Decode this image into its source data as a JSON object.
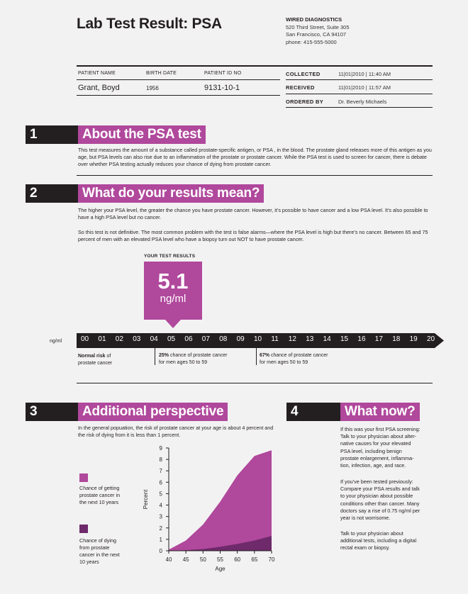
{
  "header": {
    "title": "Lab Test Result: PSA",
    "lab": {
      "name": "WIRED DIAGNOSTICS",
      "address1": "520 Third Street, Suite 305",
      "address2": "San Francisco, CA 94107",
      "phone": "phone: 415-555-5000"
    }
  },
  "patient": {
    "name_label": "PATIENT NAME",
    "name": "Grant, Boyd",
    "birth_label": "BIRTH DATE",
    "birth": "1956",
    "id_label": "PATIENT ID NO",
    "id": "9131-10-1",
    "collected_label": "COLLECTED",
    "collected": "11|01|2010 | 11:40 AM",
    "received_label": "RECEIVED",
    "received": "11|01|2010 | 11:57 AM",
    "ordered_label": "ORDERED BY",
    "ordered": "Dr. Beverly Michaels"
  },
  "section1": {
    "number": "1",
    "title": "About the PSA test",
    "text": "This test measures the amount of a substance called prostate-specific antigen, or PSA , in the blood. The prostate gland releases more of this antigen as you age, but PSA levels can also rise due to an inflammation of the prostate or prostate cancer. While the PSA test is used to screen for cancer, there is debate over whether PSA testing actually reduces your chance of dying from prostate cancer."
  },
  "section2": {
    "number": "2",
    "title": "What do your results mean?",
    "para1": "The higher your PSA level, the greater the chance you have prostate cancer. However, it’s possible to have cancer and a low PSA level. It’s also possible to have a high PSA level but no cancer.",
    "para2": "So this test is not definitive. The most common problem with the test is false alarms—where the PSA level is high but there’s no cancer. Between 65 and 75 percent of men with an elevated PSA level who have a biopsy turn out NOT to have prostate cancer.",
    "results_label": "YOUR TEST RESULTS",
    "result_value": "5.1",
    "result_unit": "ng/ml",
    "result_numeric": 5.1,
    "scale_unit": "ng/ml",
    "scale_ticks": [
      "00",
      "01",
      "02",
      "03",
      "04",
      "05",
      "06",
      "07",
      "08",
      "09",
      "10",
      "11",
      "12",
      "13",
      "14",
      "15",
      "16",
      "17",
      "18",
      "19",
      "20"
    ],
    "zones": {
      "z1_bold": "Normal risk",
      "z1_rest": " of",
      "z1_line2": "prostate cancer",
      "z2_bold": "25%",
      "z2_rest": " chance of prostate cancer",
      "z2_line2": "for men ages 50 to 59",
      "z3_bold": "67%",
      "z3_rest": " chance of prostate cancer",
      "z3_line2": "for men ages 50 to 59"
    }
  },
  "section3": {
    "number": "3",
    "title": "Additional perspective",
    "text": "In the general popuation, the risk of prostate cancer at your age is about 4 percent and the risk of dying from it is less than 1 percent.",
    "legend1": [
      "Chance of getting",
      "prostate cancer in",
      "the next 10 years"
    ],
    "legend2": [
      "Chance of dying",
      "from prostate",
      "cancer in the next",
      "10 years"
    ]
  },
  "section4": {
    "number": "4",
    "title": "What now?",
    "para1": [
      "If this was your first PSA screening:",
      "Talk to your physician about alter-",
      "native causes for your elevated",
      "PSA level, including benign",
      "prostate enlargement, inflamma-",
      "tion, infection, age, and race."
    ],
    "para2": [
      "If you’ve been tested previously:",
      "Compare your PSA results and talk",
      "to your physician about possible",
      "conditions other than cancer. Many",
      "doctors say a rise of 0.75 ng/ml per",
      "year is not worrisome."
    ],
    "para3": [
      "Talk to your physician about",
      "additional tests, including a digital",
      "rectal exam or biopsy."
    ]
  },
  "colors": {
    "magenta": "#b0489c",
    "dark_purple": "#6e2a6a",
    "dark": "#231f20"
  },
  "chart_data": {
    "type": "area",
    "title": "",
    "xlabel": "Age",
    "ylabel": "Percent",
    "x": [
      40,
      45,
      50,
      55,
      60,
      65,
      70
    ],
    "xlim": [
      40,
      70
    ],
    "ylim": [
      0,
      9
    ],
    "xticks": [
      "40",
      "45",
      "50",
      "55",
      "60",
      "65",
      "70"
    ],
    "yticks": [
      "0",
      "1",
      "2",
      "3",
      "4",
      "5",
      "6",
      "7",
      "8",
      "9"
    ],
    "series": [
      {
        "name": "Chance of getting prostate cancer in the next 10 years",
        "values": [
          0.1,
          0.9,
          2.3,
          4.3,
          6.6,
          8.3,
          8.8
        ],
        "color": "#b0489c"
      },
      {
        "name": "Chance of dying from prostate cancer in the next 10 years",
        "values": [
          0,
          0.05,
          0.15,
          0.35,
          0.6,
          0.9,
          1.3
        ],
        "color": "#6e2a6a"
      }
    ]
  }
}
